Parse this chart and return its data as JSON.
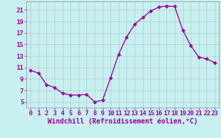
{
  "x": [
    0,
    1,
    2,
    3,
    4,
    5,
    6,
    7,
    8,
    9,
    10,
    11,
    12,
    13,
    14,
    15,
    16,
    17,
    18,
    19,
    20,
    21,
    22,
    23
  ],
  "y": [
    10.5,
    10.0,
    8.0,
    7.5,
    6.5,
    6.2,
    6.2,
    6.3,
    5.0,
    5.3,
    9.2,
    13.3,
    16.3,
    18.5,
    19.7,
    20.8,
    21.5,
    21.7,
    21.6,
    17.5,
    14.8,
    12.8,
    12.5,
    11.8
  ],
  "line_color": "#990099",
  "marker": "D",
  "markersize": 2.5,
  "linewidth": 1.0,
  "bg_color": "#c8f0f0",
  "grid_color": "#aacccc",
  "xlabel": "Windchill (Refroidissement éolien,°C)",
  "xlabel_fontsize": 7,
  "tick_label_color": "#990099",
  "tick_fontsize": 6.5,
  "ylim": [
    4,
    22.5
  ],
  "xlim": [
    -0.5,
    23.5
  ],
  "yticks": [
    5,
    7,
    9,
    11,
    13,
    15,
    17,
    19,
    21
  ],
  "xticks": [
    0,
    1,
    2,
    3,
    4,
    5,
    6,
    7,
    8,
    9,
    10,
    11,
    12,
    13,
    14,
    15,
    16,
    17,
    18,
    19,
    20,
    21,
    22,
    23
  ]
}
